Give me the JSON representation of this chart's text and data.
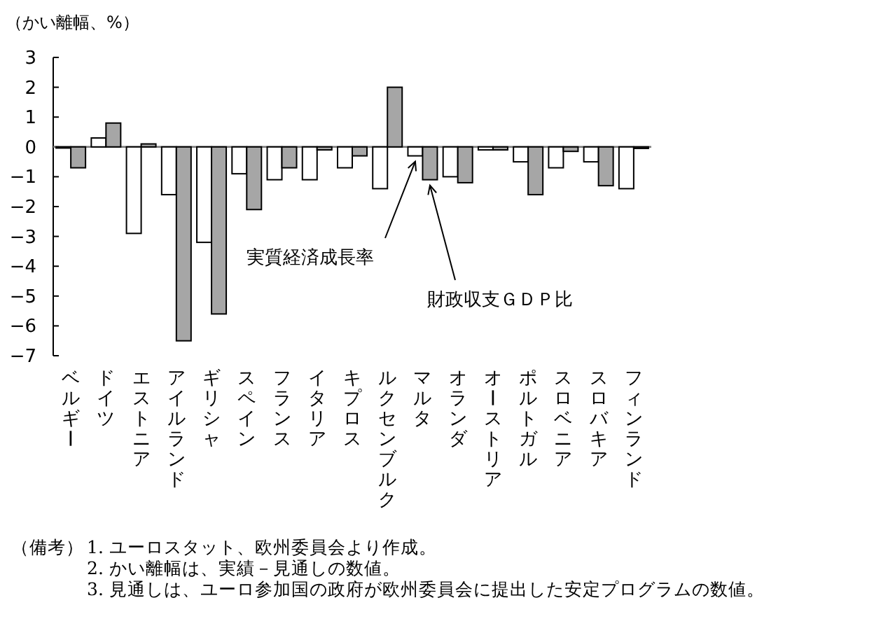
{
  "chart_data": {
    "type": "bar",
    "ylabel": "（かい離幅、%）",
    "categories": [
      "ベルギー",
      "ドイツ",
      "エストニア",
      "アイルランド",
      "ギリシャ",
      "スペイン",
      "フランス",
      "イタリア",
      "キプロス",
      "ルクセンブルク",
      "マルタ",
      "オランダ",
      "オーストリア",
      "ポルトガル",
      "スロベニア",
      "スロバキア",
      "フィンランド"
    ],
    "series": [
      {
        "name": "実質経済成長率",
        "color": "#ffffff",
        "values": [
          0,
          0.3,
          -2.9,
          -1.6,
          -3.2,
          -0.9,
          -1.1,
          -1.1,
          -0.7,
          -1.4,
          -0.3,
          -1.0,
          -0.1,
          -0.5,
          -0.7,
          -0.5,
          -1.4
        ]
      },
      {
        "name": "財政収支ＧＤＰ比",
        "color": "#a6a6a6",
        "values": [
          -0.7,
          0.8,
          0.1,
          -6.5,
          -5.6,
          -2.1,
          -0.7,
          -0.1,
          -0.3,
          2.0,
          -1.1,
          -1.2,
          -0.1,
          -1.6,
          -0.15,
          -1.3,
          -0.05
        ]
      }
    ],
    "ylim": [
      -7,
      3
    ],
    "yticks": [
      -7,
      -6,
      -5,
      -4,
      -3,
      -2,
      -1,
      0,
      1,
      2,
      3
    ],
    "annotations": [
      "（備考）",
      "1.  ユーロスタット、欧州委員会より作成。",
      "2.  かい離幅は、実績－見通しの数値。",
      "3.  見通しは、ユーロ参加国の政府が欧州委員会に提出した安定プログラムの数値。"
    ]
  }
}
